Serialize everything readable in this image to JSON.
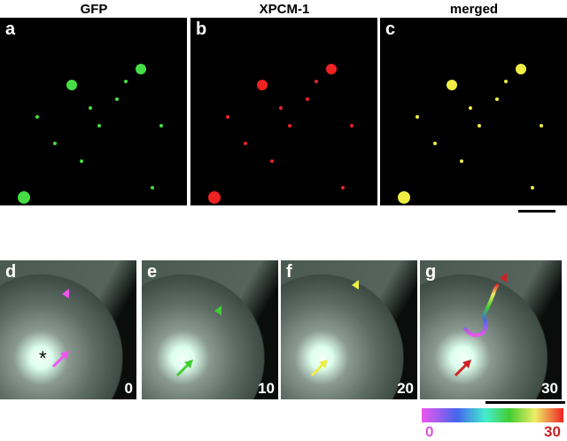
{
  "top_row": [
    {
      "header": "GFP",
      "letter": "a",
      "color": "#44dd44"
    },
    {
      "header": "XPCM-1",
      "letter": "b",
      "color": "#ee2222"
    },
    {
      "header": "merged",
      "letter": "c",
      "color": "#eeee44"
    }
  ],
  "bottom_row": [
    {
      "letter": "d",
      "time": "0",
      "marker_color": "#ee55ee"
    },
    {
      "letter": "e",
      "time": "10",
      "marker_color": "#44cc33"
    },
    {
      "letter": "f",
      "time": "20",
      "marker_color": "#eeee44"
    },
    {
      "letter": "g",
      "time": "30",
      "marker_color": "#cc2222"
    }
  ],
  "asterisk": "*",
  "colorbar": {
    "min_label": "0",
    "max_label": "30",
    "min_color": "#dd55dd",
    "max_color": "#cc2222"
  }
}
